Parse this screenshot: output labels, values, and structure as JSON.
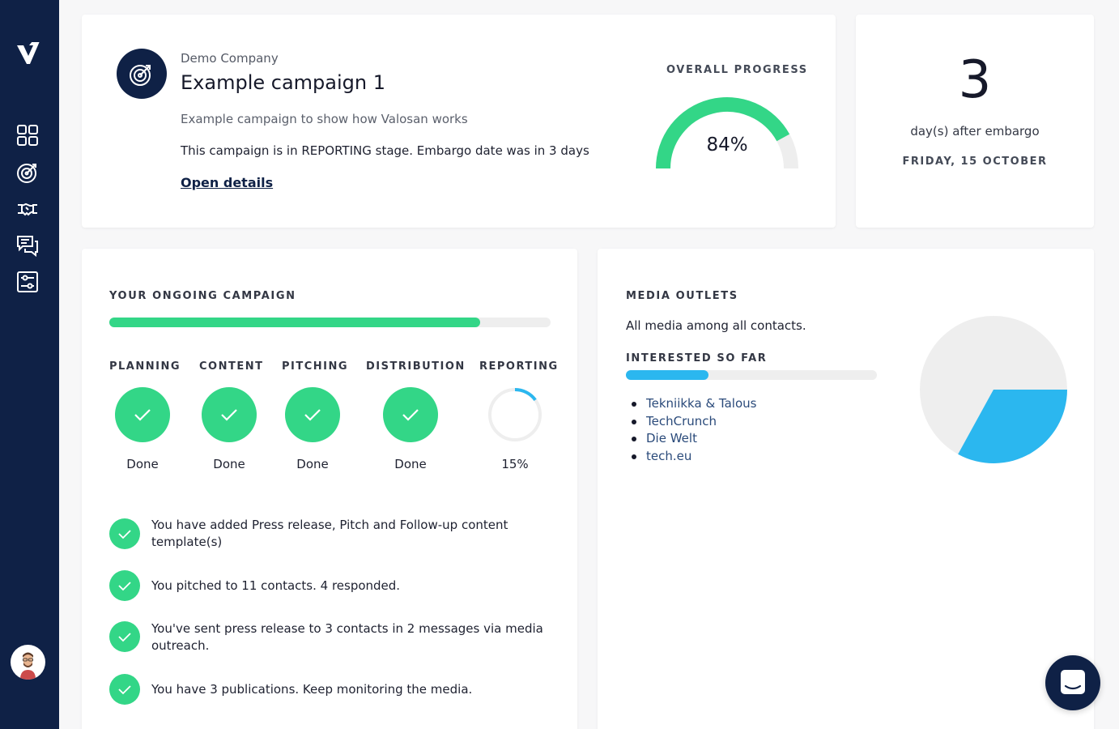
{
  "sidebar": {
    "logo_icon": "valosan-logo-icon",
    "items": [
      {
        "icon": "dashboard-grid-icon"
      },
      {
        "icon": "target-icon"
      },
      {
        "icon": "handshake-icon"
      },
      {
        "icon": "chat-icon"
      },
      {
        "icon": "settings-sliders-icon"
      }
    ],
    "avatar_icon": "user-avatar-icon"
  },
  "campaign": {
    "company": "Demo Company",
    "title": "Example campaign 1",
    "description": "Example campaign to show how Valosan works",
    "stage_text": "This campaign is in REPORTING stage. Embargo date was in 3 days",
    "open_details": "Open details",
    "progress_label": "OVERALL PROGRESS",
    "progress_value": 84,
    "progress_text": "84%"
  },
  "embargo": {
    "days": "3",
    "subtitle": "day(s) after embargo",
    "date": "FRIDAY, 15 OCTOBER"
  },
  "ongoing": {
    "label": "YOUR ONGOING CAMPAIGN",
    "progress_fraction": 0.84,
    "stages": [
      {
        "name": "PLANNING",
        "status": "Done"
      },
      {
        "name": "CONTENT",
        "status": "Done"
      },
      {
        "name": "PITCHING",
        "status": "Done"
      },
      {
        "name": "DISTRIBUTION",
        "status": "Done"
      },
      {
        "name": "REPORTING",
        "status": "15%",
        "progress": 0.15
      }
    ],
    "activities": [
      "You have added Press release, Pitch and Follow-up content template(s)",
      "You pitched to 11 contacts. 4 responded.",
      "You've sent press release to 3 contacts in 2 messages via media outreach.",
      "You have 3 publications. Keep monitoring the media."
    ]
  },
  "media": {
    "label": "MEDIA OUTLETS",
    "description": "All media among all contacts.",
    "interested_label": "INTERESTED SO FAR",
    "interested_fraction": 0.33,
    "outlets": [
      "Tekniikka & Talous",
      "TechCrunch",
      "Die Welt",
      "tech.eu"
    ],
    "pie_fraction": 0.33
  },
  "colors": {
    "navy": "#0f2146",
    "green": "#33d687",
    "blue": "#2bb7ef",
    "track": "#eeeeee"
  },
  "chat_icon": "chat-bubble-icon"
}
